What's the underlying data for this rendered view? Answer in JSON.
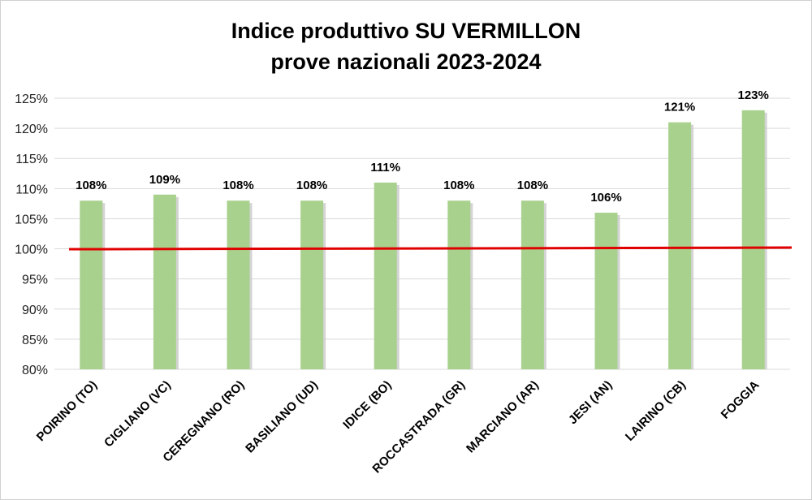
{
  "colors": {
    "bar": "#a9d18e",
    "bar_shadow": "#c9c9c9",
    "grid": "#d9d9d9",
    "baseline": "#e00000"
  },
  "chart_data": {
    "type": "bar",
    "title": [
      "Indice produttivo SU VERMILLON",
      "prove nazionali 2023-2024"
    ],
    "categories": [
      "POIRINO (TO)",
      "CIGLIANO (VC)",
      "CEREGNANO (RO)",
      "BASILIANO (UD)",
      "IDICE (BO)",
      "ROCCASTRADA (GR)",
      "MARCIANO (AR)",
      "JESI (AN)",
      "LAIRINO (CB)",
      "FOGGIA"
    ],
    "values": [
      108,
      109,
      108,
      108,
      111,
      108,
      108,
      106,
      121,
      123
    ],
    "data_labels": [
      "108%",
      "109%",
      "108%",
      "108%",
      "111%",
      "108%",
      "108%",
      "106%",
      "121%",
      "123%"
    ],
    "y_ticks": [
      80,
      85,
      90,
      95,
      100,
      105,
      110,
      115,
      120,
      125
    ],
    "y_tick_labels": [
      "80%",
      "85%",
      "90%",
      "95%",
      "100%",
      "105%",
      "110%",
      "115%",
      "120%",
      "125%"
    ],
    "ylim": [
      80,
      125
    ],
    "reference_line": 100,
    "grid": true,
    "legend": "none",
    "xlabel": "",
    "ylabel": ""
  }
}
